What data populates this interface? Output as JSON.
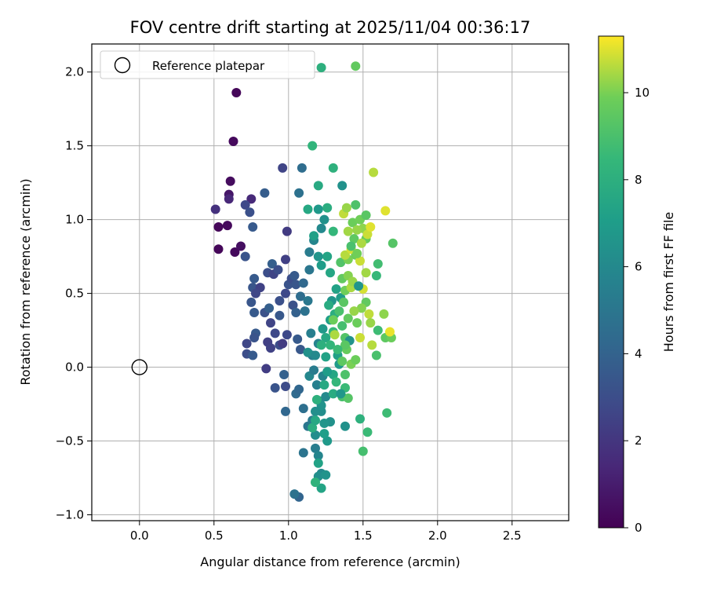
{
  "chart_data": {
    "type": "scatter",
    "title": "FOV centre drift starting at 2025/11/04 00:36:17",
    "xlabel": "Angular distance from reference (arcmin)",
    "ylabel": "Rotation from reference (arcmin)",
    "xlim": [
      -0.32,
      2.88
    ],
    "ylim": [
      -1.04,
      2.19
    ],
    "x_ticks": [
      0.0,
      0.5,
      1.0,
      1.5,
      2.0,
      2.5
    ],
    "x_tick_labels": [
      "0.0",
      "0.5",
      "1.0",
      "1.5",
      "2.0",
      "2.5"
    ],
    "y_ticks": [
      -1.0,
      -0.5,
      0.0,
      0.5,
      1.0,
      1.5,
      2.0
    ],
    "y_tick_labels": [
      "−1.0",
      "−0.5",
      "0.0",
      "0.5",
      "1.0",
      "1.5",
      "2.0"
    ],
    "grid": true,
    "legend": {
      "position": "top-left",
      "entries": [
        "Reference platepar"
      ]
    },
    "reference_point": {
      "x": 0.0,
      "y": 0.0
    },
    "colorbar": {
      "label": "Hours from first FF file",
      "colormap": "viridis",
      "range": [
        0,
        11.3
      ],
      "ticks": [
        0,
        2,
        4,
        6,
        8,
        10
      ],
      "tick_labels": [
        "0",
        "2",
        "4",
        "6",
        "8",
        "10"
      ]
    },
    "points": [
      [
        0.65,
        1.86,
        0.2
      ],
      [
        0.63,
        1.53,
        0.3
      ],
      [
        0.61,
        1.26,
        0.4
      ],
      [
        0.6,
        1.17,
        0.8
      ],
      [
        0.6,
        1.14,
        1.4
      ],
      [
        0.59,
        0.96,
        0.3
      ],
      [
        0.53,
        0.95,
        0.2
      ],
      [
        0.51,
        1.07,
        1.8
      ],
      [
        0.53,
        0.8,
        0.2
      ],
      [
        0.64,
        0.78,
        0.3
      ],
      [
        0.68,
        0.82,
        0.5
      ],
      [
        0.75,
        1.14,
        1.5
      ],
      [
        0.71,
        1.1,
        2.8
      ],
      [
        0.74,
        1.05,
        3.1
      ],
      [
        0.76,
        0.95,
        3.6
      ],
      [
        0.84,
        1.18,
        3.7
      ],
      [
        0.71,
        0.75,
        3.3
      ],
      [
        0.96,
        1.35,
        2.6
      ],
      [
        1.09,
        1.35,
        4.5
      ],
      [
        1.07,
        1.18,
        4.7
      ],
      [
        0.99,
        0.92,
        2.2
      ],
      [
        0.77,
        0.6,
        3.6
      ],
      [
        0.76,
        0.54,
        3.4
      ],
      [
        0.81,
        0.54,
        2.5
      ],
      [
        0.78,
        0.5,
        2.7
      ],
      [
        0.75,
        0.44,
        3.4
      ],
      [
        0.77,
        0.37,
        3.6
      ],
      [
        0.84,
        0.37,
        3.2
      ],
      [
        0.87,
        0.4,
        3.8
      ],
      [
        0.86,
        0.64,
        3.0
      ],
      [
        0.89,
        0.7,
        3.8
      ],
      [
        0.9,
        0.63,
        2.6
      ],
      [
        0.93,
        0.66,
        3.0
      ],
      [
        0.98,
        0.73,
        2.4
      ],
      [
        0.94,
        0.45,
        3.1
      ],
      [
        0.88,
        0.3,
        2.6
      ],
      [
        0.94,
        0.35,
        3.5
      ],
      [
        0.91,
        0.23,
        2.8
      ],
      [
        0.86,
        0.17,
        2.4
      ],
      [
        0.88,
        0.13,
        2.5
      ],
      [
        0.78,
        0.23,
        3.6
      ],
      [
        0.77,
        0.2,
        3.3
      ],
      [
        0.72,
        0.16,
        2.7
      ],
      [
        0.72,
        0.09,
        3.0
      ],
      [
        0.76,
        0.08,
        3.6
      ],
      [
        0.85,
        -0.01,
        2.3
      ],
      [
        0.91,
        -0.14,
        3.3
      ],
      [
        0.94,
        0.15,
        3.0
      ],
      [
        0.96,
        0.16,
        2.2
      ],
      [
        0.98,
        0.5,
        2.8
      ],
      [
        1.0,
        0.56,
        3.3
      ],
      [
        1.02,
        0.6,
        3.0
      ],
      [
        1.04,
        0.62,
        3.6
      ],
      [
        1.05,
        0.56,
        3.4
      ],
      [
        1.03,
        0.42,
        3.2
      ],
      [
        1.05,
        0.37,
        3.9
      ],
      [
        1.08,
        0.48,
        4.5
      ],
      [
        1.1,
        0.57,
        4.3
      ],
      [
        1.06,
        0.19,
        3.6
      ],
      [
        1.08,
        0.12,
        3.5
      ],
      [
        0.99,
        0.22,
        2.8
      ],
      [
        0.97,
        -0.05,
        3.9
      ],
      [
        0.98,
        -0.13,
        2.9
      ],
      [
        0.98,
        -0.3,
        4.2
      ],
      [
        1.05,
        -0.18,
        4.4
      ],
      [
        1.07,
        -0.15,
        4.2
      ],
      [
        1.1,
        -0.28,
        4.6
      ],
      [
        1.07,
        -0.88,
        4.1
      ],
      [
        1.04,
        -0.86,
        4.8
      ],
      [
        1.1,
        -0.58,
        4.9
      ],
      [
        1.13,
        -0.4,
        5.0
      ],
      [
        1.16,
        -0.36,
        5.2
      ],
      [
        1.18,
        -0.55,
        5.4
      ],
      [
        1.2,
        -0.6,
        5.8
      ],
      [
        1.22,
        -0.72,
        6.0
      ],
      [
        1.2,
        -0.74,
        6.3
      ],
      [
        1.25,
        -0.73,
        6.5
      ],
      [
        1.18,
        -0.46,
        6.2
      ],
      [
        1.21,
        -0.23,
        5.9
      ],
      [
        1.22,
        -0.3,
        6.2
      ],
      [
        1.25,
        -0.2,
        6.0
      ],
      [
        1.28,
        -0.37,
        6.4
      ],
      [
        1.24,
        -0.38,
        6.6
      ],
      [
        1.22,
        -0.26,
        6.5
      ],
      [
        1.18,
        -0.3,
        6.3
      ],
      [
        1.14,
        -0.06,
        5.9
      ],
      [
        1.19,
        -0.12,
        5.5
      ],
      [
        1.23,
        -0.06,
        5.8
      ],
      [
        1.16,
        0.08,
        5.3
      ],
      [
        1.2,
        0.16,
        5.7
      ],
      [
        1.15,
        0.23,
        5.5
      ],
      [
        1.13,
        0.45,
        5.1
      ],
      [
        1.11,
        0.38,
        4.8
      ],
      [
        1.14,
        0.66,
        5.0
      ],
      [
        1.14,
        0.78,
        5.3
      ],
      [
        1.17,
        0.86,
        5.8
      ],
      [
        1.22,
        0.94,
        6.0
      ],
      [
        1.24,
        1.0,
        6.4
      ],
      [
        1.2,
        1.07,
        6.8
      ],
      [
        1.17,
        0.89,
        7.2
      ],
      [
        1.2,
        0.75,
        6.6
      ],
      [
        1.22,
        0.69,
        7.0
      ],
      [
        1.26,
        0.75,
        7.4
      ],
      [
        1.3,
        0.92,
        8.4
      ],
      [
        1.26,
        1.08,
        7.9
      ],
      [
        1.13,
        1.07,
        7.6
      ],
      [
        1.16,
        1.5,
        8.3
      ],
      [
        1.2,
        1.23,
        7.7
      ],
      [
        1.3,
        1.35,
        8.1
      ],
      [
        1.36,
        1.23,
        6.4
      ],
      [
        1.22,
        2.03,
        8.0
      ],
      [
        1.45,
        2.04,
        9.6
      ],
      [
        1.28,
        0.64,
        7.5
      ],
      [
        1.32,
        0.53,
        7.3
      ],
      [
        1.35,
        0.47,
        7.0
      ],
      [
        1.29,
        0.45,
        6.6
      ],
      [
        1.27,
        0.42,
        7.8
      ],
      [
        1.31,
        0.36,
        7.9
      ],
      [
        1.28,
        0.32,
        7.1
      ],
      [
        1.23,
        0.26,
        6.8
      ],
      [
        1.25,
        0.2,
        7.6
      ],
      [
        1.22,
        0.15,
        8.0
      ],
      [
        1.25,
        0.07,
        7.3
      ],
      [
        1.28,
        0.15,
        8.3
      ],
      [
        1.3,
        0.24,
        8.5
      ],
      [
        1.33,
        0.08,
        7.2
      ],
      [
        1.34,
        0.02,
        6.9
      ],
      [
        1.3,
        -0.05,
        7.5
      ],
      [
        1.26,
        -0.03,
        7.0
      ],
      [
        1.26,
        -0.5,
        6.8
      ],
      [
        1.24,
        -0.45,
        7.1
      ],
      [
        1.22,
        -0.82,
        7.4
      ],
      [
        1.2,
        -0.65,
        7.3
      ],
      [
        1.18,
        -0.78,
        8.2
      ],
      [
        1.16,
        -0.41,
        7.9
      ],
      [
        1.18,
        -0.36,
        7.6
      ],
      [
        1.19,
        -0.22,
        8.1
      ],
      [
        1.24,
        -0.12,
        7.7
      ],
      [
        1.3,
        -0.18,
        7.8
      ],
      [
        1.32,
        -0.1,
        8.4
      ],
      [
        1.38,
        -0.14,
        8.6
      ],
      [
        1.36,
        -0.2,
        9.0
      ],
      [
        1.4,
        -0.21,
        9.3
      ],
      [
        1.38,
        -0.05,
        9.1
      ],
      [
        1.36,
        0.04,
        9.5
      ],
      [
        1.42,
        0.02,
        10.0
      ],
      [
        1.45,
        0.05,
        9.8
      ],
      [
        1.39,
        0.12,
        9.7
      ],
      [
        1.38,
        0.2,
        9.2
      ],
      [
        1.36,
        0.28,
        8.9
      ],
      [
        1.4,
        0.33,
        9.6
      ],
      [
        1.34,
        0.38,
        9.0
      ],
      [
        1.37,
        0.44,
        9.4
      ],
      [
        1.38,
        0.52,
        9.9
      ],
      [
        1.42,
        0.54,
        10.5
      ],
      [
        1.36,
        0.6,
        9.6
      ],
      [
        1.4,
        0.62,
        10.1
      ],
      [
        1.43,
        0.58,
        10.3
      ],
      [
        1.35,
        0.71,
        9.2
      ],
      [
        1.4,
        0.73,
        10.0
      ],
      [
        1.38,
        0.76,
        10.6
      ],
      [
        1.45,
        0.76,
        9.8
      ],
      [
        1.42,
        0.8,
        10.9
      ],
      [
        1.44,
        0.87,
        9.5
      ],
      [
        1.4,
        0.92,
        10.4
      ],
      [
        1.43,
        0.98,
        9.8
      ],
      [
        1.37,
        1.04,
        10.7
      ],
      [
        1.39,
        1.08,
        10.3
      ],
      [
        1.45,
        1.1,
        9.1
      ],
      [
        1.48,
        1.0,
        9.9
      ],
      [
        1.5,
        0.94,
        10.2
      ],
      [
        1.52,
        0.87,
        9.7
      ],
      [
        1.49,
        0.84,
        10.5
      ],
      [
        1.53,
        0.9,
        10.8
      ],
      [
        1.55,
        0.95,
        11.0
      ],
      [
        1.57,
        1.32,
        10.6
      ],
      [
        1.52,
        1.03,
        9.4
      ],
      [
        1.65,
        1.06,
        11.0
      ],
      [
        1.7,
        0.84,
        9.3
      ],
      [
        1.6,
        0.7,
        8.8
      ],
      [
        1.59,
        0.62,
        8.5
      ],
      [
        1.52,
        0.64,
        10.4
      ],
      [
        1.48,
        0.72,
        10.8
      ],
      [
        1.46,
        0.77,
        9.9
      ],
      [
        1.5,
        0.53,
        10.9
      ],
      [
        1.52,
        0.44,
        9.6
      ],
      [
        1.49,
        0.4,
        10.1
      ],
      [
        1.54,
        0.36,
        10.7
      ],
      [
        1.55,
        0.3,
        10.3
      ],
      [
        1.6,
        0.25,
        8.7
      ],
      [
        1.64,
        0.36,
        10.2
      ],
      [
        1.65,
        0.2,
        9.5
      ],
      [
        1.69,
        0.2,
        9.8
      ],
      [
        1.68,
        0.24,
        11.1
      ],
      [
        1.56,
        0.15,
        10.6
      ],
      [
        1.59,
        0.08,
        9.0
      ],
      [
        1.48,
        0.2,
        10.8
      ],
      [
        1.46,
        0.3,
        9.8
      ],
      [
        1.44,
        0.38,
        10.3
      ],
      [
        1.41,
        0.18,
        6.5
      ],
      [
        1.38,
        0.15,
        9.4
      ],
      [
        1.33,
        0.12,
        8.6
      ],
      [
        1.31,
        0.22,
        10.5
      ],
      [
        1.3,
        0.32,
        9.8
      ],
      [
        1.47,
        0.55,
        6.6
      ],
      [
        1.46,
        0.93,
        10.3
      ],
      [
        1.42,
        0.82,
        9.0
      ],
      [
        1.48,
        -0.35,
        8.1
      ],
      [
        1.53,
        -0.44,
        8.6
      ],
      [
        1.5,
        -0.57,
        8.9
      ],
      [
        1.66,
        -0.31,
        8.7
      ],
      [
        1.38,
        -0.4,
        6.4
      ],
      [
        1.35,
        -0.18,
        6.7
      ],
      [
        1.17,
        -0.02,
        5.3
      ],
      [
        1.13,
        0.1,
        6.4
      ],
      [
        1.18,
        0.08,
        6.0
      ]
    ]
  }
}
